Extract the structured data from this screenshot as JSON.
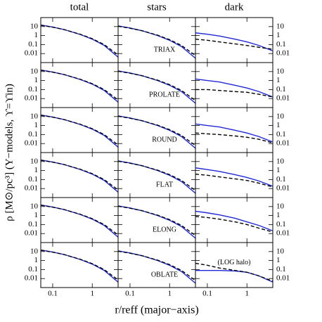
{
  "ylabel": "ρ [M⊙/pc³] (Y−models, ϒ=ϒin)",
  "xlabel": "r/reff (major−axis)",
  "chart_data": [
    {
      "type": "line",
      "title": "total",
      "x": [
        0.05,
        0.1,
        0.2,
        0.5,
        1,
        2,
        4.5
      ],
      "xlim": [
        0.05,
        4.5
      ],
      "ylim": [
        0.001,
        100
      ],
      "xticks": [
        0.1,
        1
      ],
      "yticks": [
        0.01,
        0.1,
        1,
        10
      ],
      "log_x": true,
      "log_y": true,
      "series": [
        {
          "color": "#1f2ad6",
          "linestyle": "solid",
          "values": [
            15,
            9,
            4.5,
            1.3,
            0.4,
            0.08,
            0.004
          ]
        },
        {
          "color": "#000000",
          "linestyle": "dashed",
          "values": [
            14,
            8.5,
            4.5,
            1.4,
            0.45,
            0.1,
            0.007
          ]
        }
      ]
    },
    {
      "type": "line",
      "title": "stars",
      "annotation": "TRIAX",
      "x": [
        0.05,
        0.1,
        0.2,
        0.5,
        1,
        2,
        4.5
      ],
      "xlim": [
        0.05,
        4.5
      ],
      "ylim": [
        0.001,
        100
      ],
      "xticks": [
        0.1,
        1
      ],
      "yticks": [
        0.01,
        0.1,
        1,
        10
      ],
      "log_x": true,
      "log_y": true,
      "series": [
        {
          "color": "#1f2ad6",
          "linestyle": "solid",
          "values": [
            12,
            7,
            3.5,
            1,
            0.3,
            0.06,
            0.003
          ]
        },
        {
          "color": "#000000",
          "linestyle": "dashed",
          "values": [
            11,
            6.5,
            3.5,
            1.1,
            0.35,
            0.08,
            0.006
          ]
        }
      ]
    },
    {
      "type": "line",
      "title": "dark",
      "x": [
        0.05,
        0.1,
        0.2,
        0.5,
        1,
        2,
        4.5
      ],
      "xlim": [
        0.05,
        4.5
      ],
      "ylim": [
        0.001,
        100
      ],
      "xticks": [
        0.1,
        1
      ],
      "yticks": [
        0.01,
        0.1,
        1,
        10
      ],
      "log_x": true,
      "log_y": true,
      "series": [
        {
          "color": "#1f2ad6",
          "linestyle": "solid",
          "values": [
            2,
            1.4,
            0.9,
            0.4,
            0.2,
            0.08,
            0.02
          ]
        },
        {
          "color": "#000000",
          "linestyle": "dashed",
          "values": [
            0.4,
            0.3,
            0.2,
            0.12,
            0.08,
            0.05,
            0.03
          ]
        }
      ]
    },
    {
      "type": "line",
      "x": [
        0.05,
        0.1,
        0.2,
        0.5,
        1,
        2,
        4.5
      ],
      "xlim": [
        0.05,
        4.5
      ],
      "ylim": [
        0.001,
        100
      ],
      "xticks": [
        0.1,
        1
      ],
      "yticks": [
        0.01,
        0.1,
        1,
        10
      ],
      "log_x": true,
      "log_y": true,
      "series": [
        {
          "color": "#1f2ad6",
          "linestyle": "solid",
          "values": [
            15,
            9,
            4.5,
            1.3,
            0.4,
            0.08,
            0.004
          ]
        },
        {
          "color": "#000000",
          "linestyle": "dashed",
          "values": [
            14,
            8.5,
            4.5,
            1.4,
            0.45,
            0.1,
            0.007
          ]
        }
      ]
    },
    {
      "type": "line",
      "annotation": "PROLATE",
      "x": [
        0.05,
        0.1,
        0.2,
        0.5,
        1,
        2,
        4.5
      ],
      "xlim": [
        0.05,
        4.5
      ],
      "ylim": [
        0.001,
        100
      ],
      "xticks": [
        0.1,
        1
      ],
      "yticks": [
        0.01,
        0.1,
        1,
        10
      ],
      "log_x": true,
      "log_y": true,
      "series": [
        {
          "color": "#1f2ad6",
          "linestyle": "solid",
          "values": [
            12,
            7,
            3.5,
            1,
            0.3,
            0.06,
            0.003
          ]
        },
        {
          "color": "#000000",
          "linestyle": "dashed",
          "values": [
            11,
            6.5,
            3.5,
            1.1,
            0.35,
            0.08,
            0.006
          ]
        }
      ]
    },
    {
      "type": "line",
      "x": [
        0.05,
        0.1,
        0.2,
        0.5,
        1,
        2,
        4.5
      ],
      "xlim": [
        0.05,
        4.5
      ],
      "ylim": [
        0.001,
        100
      ],
      "xticks": [
        0.1,
        1
      ],
      "yticks": [
        0.01,
        0.1,
        1,
        10
      ],
      "log_x": true,
      "log_y": true,
      "series": [
        {
          "color": "#1f2ad6",
          "linestyle": "solid",
          "values": [
            1.5,
            1,
            0.7,
            0.3,
            0.15,
            0.06,
            0.015
          ]
        },
        {
          "color": "#000000",
          "linestyle": "dashed",
          "values": [
            0.1,
            0.1,
            0.08,
            0.06,
            0.05,
            0.03,
            0.015
          ]
        }
      ]
    },
    {
      "type": "line",
      "x": [
        0.05,
        0.1,
        0.2,
        0.5,
        1,
        2,
        4.5
      ],
      "xlim": [
        0.05,
        4.5
      ],
      "ylim": [
        0.001,
        100
      ],
      "xticks": [
        0.1,
        1
      ],
      "yticks": [
        0.01,
        0.1,
        1,
        10
      ],
      "log_x": true,
      "log_y": true,
      "series": [
        {
          "color": "#1f2ad6",
          "linestyle": "solid",
          "values": [
            15,
            9,
            4.5,
            1.3,
            0.4,
            0.08,
            0.004
          ]
        },
        {
          "color": "#000000",
          "linestyle": "dashed",
          "values": [
            14,
            8.5,
            4.5,
            1.4,
            0.45,
            0.1,
            0.007
          ]
        }
      ]
    },
    {
      "type": "line",
      "annotation": "ROUND",
      "x": [
        0.05,
        0.1,
        0.2,
        0.5,
        1,
        2,
        4.5
      ],
      "xlim": [
        0.05,
        4.5
      ],
      "ylim": [
        0.001,
        100
      ],
      "xticks": [
        0.1,
        1
      ],
      "yticks": [
        0.01,
        0.1,
        1,
        10
      ],
      "log_x": true,
      "log_y": true,
      "series": [
        {
          "color": "#1f2ad6",
          "linestyle": "solid",
          "values": [
            12,
            7,
            3.5,
            1,
            0.3,
            0.06,
            0.003
          ]
        },
        {
          "color": "#000000",
          "linestyle": "dashed",
          "values": [
            11,
            6.5,
            3.5,
            1.1,
            0.35,
            0.08,
            0.006
          ]
        }
      ]
    },
    {
      "type": "line",
      "x": [
        0.05,
        0.1,
        0.2,
        0.5,
        1,
        2,
        4.5
      ],
      "xlim": [
        0.05,
        4.5
      ],
      "ylim": [
        0.001,
        100
      ],
      "xticks": [
        0.1,
        1
      ],
      "yticks": [
        0.01,
        0.1,
        1,
        10
      ],
      "log_x": true,
      "log_y": true,
      "series": [
        {
          "color": "#1f2ad6",
          "linestyle": "solid",
          "values": [
            1.5,
            1,
            0.7,
            0.3,
            0.15,
            0.06,
            0.015
          ]
        },
        {
          "color": "#000000",
          "linestyle": "dashed",
          "values": [
            0.15,
            0.12,
            0.1,
            0.07,
            0.05,
            0.03,
            0.012
          ]
        }
      ]
    },
    {
      "type": "line",
      "x": [
        0.05,
        0.1,
        0.2,
        0.5,
        1,
        2,
        4.5
      ],
      "xlim": [
        0.05,
        4.5
      ],
      "ylim": [
        0.001,
        100
      ],
      "xticks": [
        0.1,
        1
      ],
      "yticks": [
        0.01,
        0.1,
        1,
        10
      ],
      "log_x": true,
      "log_y": true,
      "series": [
        {
          "color": "#1f2ad6",
          "linestyle": "solid",
          "values": [
            15,
            9,
            4.5,
            1.3,
            0.4,
            0.08,
            0.004
          ]
        },
        {
          "color": "#000000",
          "linestyle": "dashed",
          "values": [
            14,
            8.5,
            4.5,
            1.4,
            0.45,
            0.1,
            0.007
          ]
        }
      ]
    },
    {
      "type": "line",
      "annotation": "FLAT",
      "x": [
        0.05,
        0.1,
        0.2,
        0.5,
        1,
        2,
        4.5
      ],
      "xlim": [
        0.05,
        4.5
      ],
      "ylim": [
        0.001,
        100
      ],
      "xticks": [
        0.1,
        1
      ],
      "yticks": [
        0.01,
        0.1,
        1,
        10
      ],
      "log_x": true,
      "log_y": true,
      "series": [
        {
          "color": "#1f2ad6",
          "linestyle": "solid",
          "values": [
            12,
            7,
            3.5,
            1,
            0.3,
            0.06,
            0.003
          ]
        },
        {
          "color": "#000000",
          "linestyle": "dashed",
          "values": [
            11,
            6.5,
            3.5,
            1.1,
            0.35,
            0.08,
            0.006
          ]
        }
      ]
    },
    {
      "type": "line",
      "x": [
        0.05,
        0.1,
        0.2,
        0.5,
        1,
        2,
        4.5
      ],
      "xlim": [
        0.05,
        4.5
      ],
      "ylim": [
        0.001,
        100
      ],
      "xticks": [
        0.1,
        1
      ],
      "yticks": [
        0.01,
        0.1,
        1,
        10
      ],
      "log_x": true,
      "log_y": true,
      "series": [
        {
          "color": "#1f2ad6",
          "linestyle": "solid",
          "values": [
            2,
            1.3,
            0.8,
            0.35,
            0.17,
            0.07,
            0.018
          ]
        },
        {
          "color": "#000000",
          "linestyle": "dashed",
          "values": [
            0.4,
            0.3,
            0.2,
            0.12,
            0.08,
            0.04,
            0.015
          ]
        }
      ]
    },
    {
      "type": "line",
      "x": [
        0.05,
        0.1,
        0.2,
        0.5,
        1,
        2,
        4.5
      ],
      "xlim": [
        0.05,
        4.5
      ],
      "ylim": [
        0.001,
        100
      ],
      "xticks": [
        0.1,
        1
      ],
      "yticks": [
        0.01,
        0.1,
        1,
        10
      ],
      "log_x": true,
      "log_y": true,
      "series": [
        {
          "color": "#1f2ad6",
          "linestyle": "solid",
          "values": [
            15,
            9,
            4.5,
            1.3,
            0.4,
            0.08,
            0.004
          ]
        },
        {
          "color": "#000000",
          "linestyle": "dashed",
          "values": [
            14,
            8.5,
            4.5,
            1.4,
            0.45,
            0.1,
            0.007
          ]
        }
      ]
    },
    {
      "type": "line",
      "annotation": "ELONG",
      "x": [
        0.05,
        0.1,
        0.2,
        0.5,
        1,
        2,
        4.5
      ],
      "xlim": [
        0.05,
        4.5
      ],
      "ylim": [
        0.001,
        100
      ],
      "xticks": [
        0.1,
        1
      ],
      "yticks": [
        0.01,
        0.1,
        1,
        10
      ],
      "log_x": true,
      "log_y": true,
      "series": [
        {
          "color": "#1f2ad6",
          "linestyle": "solid",
          "values": [
            12,
            7,
            3.5,
            1,
            0.3,
            0.06,
            0.003
          ]
        },
        {
          "color": "#000000",
          "linestyle": "dashed",
          "values": [
            11,
            6.5,
            3.5,
            1.1,
            0.35,
            0.08,
            0.006
          ]
        }
      ]
    },
    {
      "type": "line",
      "x": [
        0.05,
        0.1,
        0.2,
        0.5,
        1,
        2,
        4.5
      ],
      "xlim": [
        0.05,
        4.5
      ],
      "ylim": [
        0.001,
        100
      ],
      "xticks": [
        0.1,
        1
      ],
      "yticks": [
        0.01,
        0.1,
        1,
        10
      ],
      "log_x": true,
      "log_y": true,
      "series": [
        {
          "color": "#1f2ad6",
          "linestyle": "solid",
          "values": [
            3,
            2,
            1.2,
            0.5,
            0.2,
            0.08,
            0.02
          ]
        },
        {
          "color": "#000000",
          "linestyle": "dashed",
          "values": [
            0.8,
            0.6,
            0.4,
            0.2,
            0.1,
            0.04,
            0.015
          ]
        }
      ]
    },
    {
      "type": "line",
      "x": [
        0.05,
        0.1,
        0.2,
        0.5,
        1,
        2,
        4.5
      ],
      "xlim": [
        0.05,
        4.5
      ],
      "ylim": [
        0.001,
        100
      ],
      "xticks": [
        0.1,
        1
      ],
      "yticks": [
        0.01,
        0.1,
        1,
        10
      ],
      "log_x": true,
      "log_y": true,
      "series": [
        {
          "color": "#1f2ad6",
          "linestyle": "solid",
          "values": [
            15,
            9,
            4.5,
            1.3,
            0.4,
            0.08,
            0.004
          ]
        },
        {
          "color": "#000000",
          "linestyle": "dashed",
          "values": [
            14,
            8.5,
            4.5,
            1.4,
            0.45,
            0.1,
            0.007
          ]
        }
      ]
    },
    {
      "type": "line",
      "annotation": "OBLATE",
      "x": [
        0.05,
        0.1,
        0.2,
        0.5,
        1,
        2,
        4.5
      ],
      "xlim": [
        0.05,
        4.5
      ],
      "ylim": [
        0.001,
        100
      ],
      "xticks": [
        0.1,
        1
      ],
      "yticks": [
        0.01,
        0.1,
        1,
        10
      ],
      "log_x": true,
      "log_y": true,
      "series": [
        {
          "color": "#1f2ad6",
          "linestyle": "solid",
          "values": [
            12,
            7,
            3.5,
            1,
            0.3,
            0.06,
            0.003
          ]
        },
        {
          "color": "#000000",
          "linestyle": "dashed",
          "values": [
            11,
            6.5,
            3.5,
            1.1,
            0.35,
            0.08,
            0.006
          ]
        }
      ]
    },
    {
      "type": "line",
      "annotation": "(LOG halo)",
      "x": [
        0.05,
        0.1,
        0.2,
        0.5,
        1,
        2,
        4.5
      ],
      "xlim": [
        0.05,
        4.5
      ],
      "ylim": [
        0.001,
        100
      ],
      "xticks": [
        0.1,
        1
      ],
      "yticks": [
        0.01,
        0.1,
        1,
        10
      ],
      "log_x": true,
      "log_y": true,
      "series": [
        {
          "color": "#1f2ad6",
          "linestyle": "solid",
          "values": [
            0.08,
            0.08,
            0.08,
            0.07,
            0.05,
            0.02,
            0.004
          ]
        },
        {
          "color": "#000000",
          "linestyle": "dashed",
          "values": [
            0.5,
            0.3,
            0.15,
            0.08,
            0.05,
            0.02,
            0.005
          ]
        }
      ]
    }
  ]
}
